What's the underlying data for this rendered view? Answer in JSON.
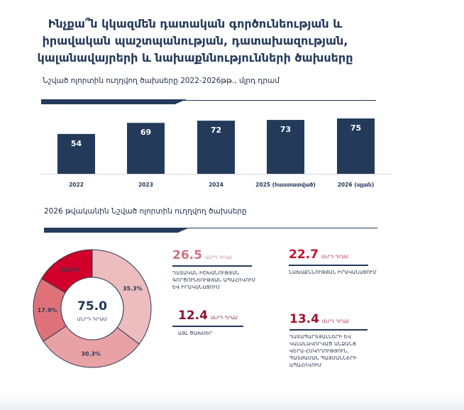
{
  "title": "Ինչքա՞ն կկազմեն դատական գործունեության և իրավական պաշտպանության, դատախազության, կալանավայրերի և նախաքննությունների ծախսերը",
  "bar_section": {
    "heading": "Նշված ոլորտին ուղղվող ծախսերը 2022-2026թթ., մլրդ դրամ"
  },
  "donut_section": {
    "heading": "2026 թվականին Նշված ոլորտին ուղղվող ծախսերը",
    "center_value": "75.0",
    "center_unit": "ՄԼՐԴ ԴՐԱՄ"
  },
  "stats": [
    {
      "value": "26.5",
      "unit": "ՄԼՐԴ ԴՐԱՄ",
      "label": "ԴԱՏԱԿԱՆ ԻՇԽԱՆՈՒԹՅԱՆ ԳՈՐԾՈՒՆԵՈՒԹՅԱՆ ԱՊԱՀՈՎՈՒՄ ԵՎ ԻՐԱԿԱՆԱՑՈՒՄ",
      "color": "#d0717d"
    },
    {
      "value": "22.7",
      "unit": "ՄԼՐԴ ԴՐԱՄ",
      "label": "ՆԱԽԱՔՆՆՈՒԹՅԱՆ ԻՐԱԿԱՆԱՑՈՒՄ",
      "color": "#c8102e"
    },
    {
      "value": "12.4",
      "unit": "ՄԼՐԴ ԴՐԱՄ",
      "label": "ԱՅԼ ԾԱԽՍԵՐ",
      "color": "#8b1431"
    },
    {
      "value": "13.4",
      "unit": "ՄԼՐԴ ԴՐԱՄ",
      "label": "ԴԱՏԱՊԱՐՏՅԱԼՆԵՐԻ ԵՎ ԿԱԼԱՆԱՎՈՐՎԱԾ ԱՆՁԱՆՑ ՎԵՐԱ-ՀՍԿՈՂՈՒԹՅՈՒՆ, ՊԱՏԺԱՄԱՆ ՊԱՅՄԱՆՆԵՐԻ ԱՊԱՀՈՎՈՒՄ",
      "color": "#a0142f"
    }
  ],
  "chart_data": [
    {
      "type": "bar",
      "title": "Նշված ոլորտին ուղղվող ծախսերը 2022-2026թթ., մլրդ դրամ",
      "categories": [
        "2022",
        "2023",
        "2024",
        "2025 (հաստատված)",
        "2026 (պլան)"
      ],
      "values": [
        54,
        69,
        72,
        73,
        75
      ],
      "labels": [
        "54",
        "69",
        "72",
        "73",
        "75"
      ],
      "ylim": [
        0,
        80
      ],
      "grid": false,
      "bar_color": "#243a5a"
    },
    {
      "type": "pie",
      "title": "2026 թվականին Նշված ոլորտին ուղղվող ծախսերը",
      "total": 75.0,
      "slices": [
        {
          "label": "35.3%",
          "value": 35.3,
          "color": "#ecbcbe"
        },
        {
          "label": "30.3%",
          "value": 30.3,
          "color": "#e8a1a4"
        },
        {
          "label": "17.9%",
          "value": 17.9,
          "color": "#df7279"
        },
        {
          "label": "16.5%",
          "value": 16.5,
          "color": "#d1002a"
        }
      ]
    }
  ]
}
